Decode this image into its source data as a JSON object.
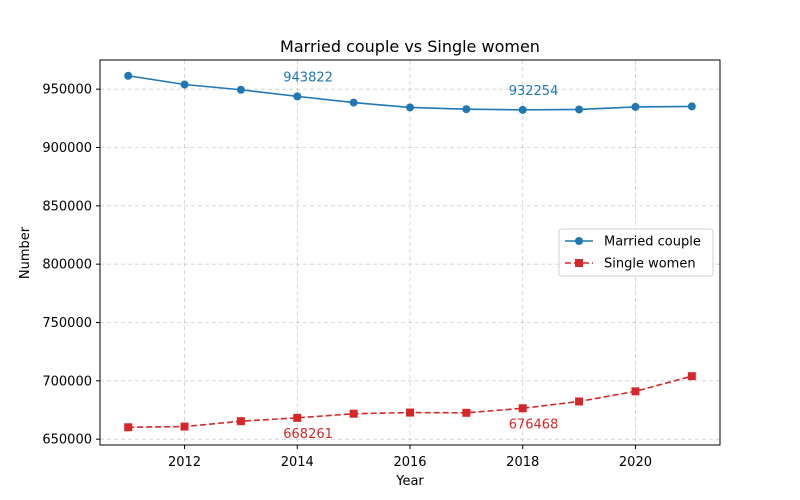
{
  "chart_data": {
    "type": "line",
    "title": "Married couple vs Single women",
    "xlabel": "Year",
    "ylabel": "Number",
    "xlim": [
      2010.5,
      2021.5
    ],
    "ylim": [
      645000,
      975000
    ],
    "xticks": [
      2012,
      2014,
      2016,
      2018,
      2020
    ],
    "yticks": [
      650000,
      700000,
      750000,
      800000,
      850000,
      900000,
      950000
    ],
    "x": [
      2011,
      2012,
      2013,
      2014,
      2015,
      2016,
      2017,
      2018,
      2019,
      2020,
      2021
    ],
    "series": [
      {
        "name": "Married couple",
        "color": "#1f77b4",
        "marker": "circle",
        "linestyle": "solid",
        "values": [
          961500,
          954000,
          949500,
          943822,
          938500,
          934300,
          932800,
          932254,
          932600,
          934800,
          935200
        ]
      },
      {
        "name": "Single women",
        "color": "#d62728",
        "marker": "square",
        "linestyle": "dashed",
        "values": [
          660200,
          660800,
          665400,
          668261,
          671800,
          672800,
          672600,
          676468,
          682300,
          691000,
          704000
        ]
      }
    ],
    "annotations": [
      {
        "series": 0,
        "x": 2014,
        "value": 943822,
        "text": "943822"
      },
      {
        "series": 0,
        "x": 2018,
        "value": 932254,
        "text": "932254"
      },
      {
        "series": 1,
        "x": 2014,
        "value": 668261,
        "text": "668261"
      },
      {
        "series": 1,
        "x": 2018,
        "value": 676468,
        "text": "676468"
      }
    ],
    "legend_position": "center-right",
    "grid": true
  }
}
